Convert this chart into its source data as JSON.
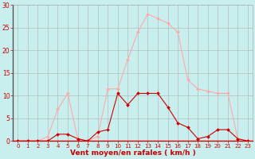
{
  "x": [
    0,
    1,
    2,
    3,
    4,
    5,
    6,
    7,
    8,
    9,
    10,
    11,
    12,
    13,
    14,
    15,
    16,
    17,
    18,
    19,
    20,
    21,
    22,
    23
  ],
  "rafales": [
    0,
    0,
    0,
    1,
    7,
    10.5,
    0.5,
    0,
    1,
    11.5,
    11.5,
    18,
    24,
    28,
    27,
    26,
    24,
    13.5,
    11.5,
    11,
    10.5,
    10.5,
    0.5,
    0
  ],
  "moyen": [
    0,
    0,
    0,
    0,
    1.5,
    1.5,
    0.5,
    0,
    2,
    2.5,
    10.5,
    8,
    10.5,
    10.5,
    10.5,
    7.5,
    4,
    3,
    0.5,
    1,
    2.5,
    2.5,
    0.5,
    0
  ],
  "xlabel": "Vent moyen/en rafales ( km/h )",
  "ylim": [
    0,
    30
  ],
  "xlim_min": -0.5,
  "xlim_max": 23.5,
  "yticks": [
    0,
    5,
    10,
    15,
    20,
    25,
    30
  ],
  "xticks": [
    0,
    1,
    2,
    3,
    4,
    5,
    6,
    7,
    8,
    9,
    10,
    11,
    12,
    13,
    14,
    15,
    16,
    17,
    18,
    19,
    20,
    21,
    22,
    23
  ],
  "bg_color": "#c8eeee",
  "grid_color": "#b0b0b0",
  "rafales_color": "#ffaaaa",
  "moyen_color": "#cc0000",
  "tick_color": "#cc0000",
  "xlabel_color": "#cc0000",
  "left_spine_color": "#555555",
  "bottom_spine_color": "#cc0000"
}
